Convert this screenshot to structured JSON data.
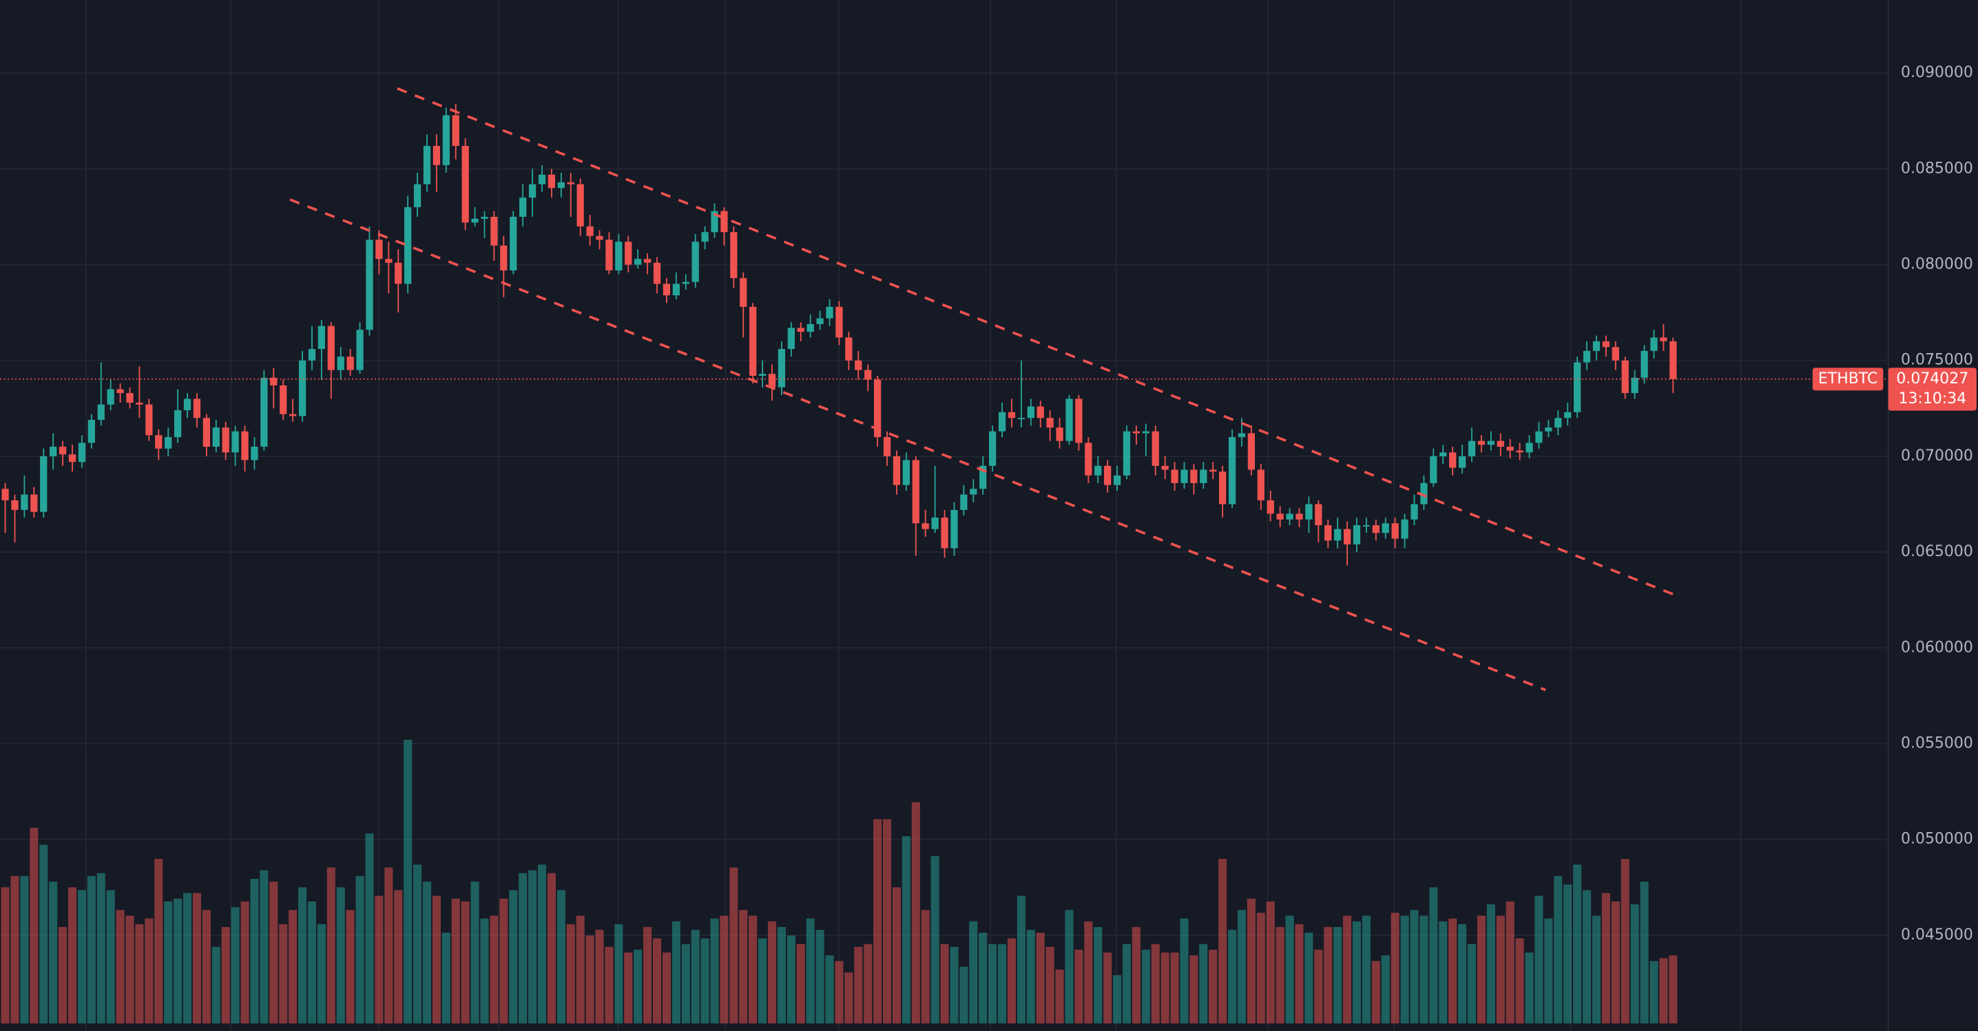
{
  "chart_data": {
    "type": "candlestick",
    "symbol": "ETHBTC",
    "last_price": 0.074027,
    "countdown": "13:10:34",
    "up_color": "#26a69a",
    "down_color": "#ef5350",
    "ylim": [
      0.04,
      0.093816
    ],
    "yticks": [
      {
        "value": 0.09,
        "label": "0.090000"
      },
      {
        "value": 0.085,
        "label": "0.085000"
      },
      {
        "value": 0.08,
        "label": "0.080000"
      },
      {
        "value": 0.075,
        "label": "0.075000"
      },
      {
        "value": 0.07,
        "label": "0.070000"
      },
      {
        "value": 0.065,
        "label": "0.065000"
      },
      {
        "value": 0.06,
        "label": "0.060000"
      },
      {
        "value": 0.055,
        "label": "0.055000"
      },
      {
        "value": 0.05,
        "label": "0.050000"
      },
      {
        "value": 0.045,
        "label": "0.045000"
      }
    ],
    "grid": true,
    "volume_lim": [
      0,
      100
    ],
    "candles": {
      "open": [
        0.0683,
        0.0677,
        0.0672,
        0.068,
        0.0671,
        0.07,
        0.0705,
        0.0701,
        0.0697,
        0.0707,
        0.0719,
        0.0727,
        0.0735,
        0.0733,
        0.0728,
        0.0727,
        0.0711,
        0.0704,
        0.071,
        0.0724,
        0.073,
        0.072,
        0.0705,
        0.0715,
        0.0702,
        0.0713,
        0.0698,
        0.0705,
        0.0741,
        0.0737,
        0.0722,
        0.0721,
        0.075,
        0.0756,
        0.0768,
        0.0745,
        0.0752,
        0.0745,
        0.0766,
        0.0813,
        0.0803,
        0.0801,
        0.079,
        0.083,
        0.0842,
        0.0862,
        0.0852,
        0.0878,
        0.0862,
        0.0822,
        0.0824,
        0.0825,
        0.081,
        0.0797,
        0.0825,
        0.0835,
        0.0842,
        0.0847,
        0.084,
        0.0843,
        0.0842,
        0.082,
        0.0815,
        0.0813,
        0.0797,
        0.0812,
        0.08,
        0.0803,
        0.0801,
        0.079,
        0.0784,
        0.079,
        0.0791,
        0.0812,
        0.0817,
        0.0828,
        0.0817,
        0.0793,
        0.0778,
        0.0742,
        0.0743,
        0.0736,
        0.0756,
        0.0767,
        0.0765,
        0.0769,
        0.0772,
        0.0778,
        0.0762,
        0.075,
        0.0745,
        0.074,
        0.071,
        0.07,
        0.0685,
        0.0698,
        0.0665,
        0.0662,
        0.0668,
        0.0652,
        0.0672,
        0.068,
        0.0683,
        0.0695,
        0.0713,
        0.0723,
        0.072,
        0.072,
        0.0726,
        0.072,
        0.0715,
        0.0708,
        0.073,
        0.0707,
        0.069,
        0.0695,
        0.0685,
        0.069,
        0.0713,
        0.0712,
        0.0713,
        0.0695,
        0.0693,
        0.0686,
        0.0693,
        0.0686,
        0.0693,
        0.0692,
        0.0675,
        0.071,
        0.0712,
        0.0693,
        0.0677,
        0.067,
        0.0667,
        0.067,
        0.0667,
        0.0675,
        0.0664,
        0.0656,
        0.0662,
        0.0654,
        0.0664,
        0.0664,
        0.066,
        0.0665,
        0.0657,
        0.0667,
        0.0675,
        0.0686,
        0.07,
        0.0702,
        0.0694,
        0.07,
        0.0708,
        0.0706,
        0.0708,
        0.0705,
        0.0703,
        0.0702,
        0.0707,
        0.0713,
        0.0715,
        0.072,
        0.0723,
        0.0749,
        0.0755,
        0.076,
        0.0757,
        0.075,
        0.0733,
        0.0741,
        0.0755,
        0.0762,
        0.076
      ],
      "high": [
        0.0686,
        0.068,
        0.069,
        0.0684,
        0.0704,
        0.0712,
        0.0708,
        0.0706,
        0.0711,
        0.0722,
        0.0749,
        0.074,
        0.0738,
        0.0736,
        0.0747,
        0.073,
        0.0714,
        0.0715,
        0.0735,
        0.0733,
        0.0733,
        0.0722,
        0.0719,
        0.0718,
        0.0716,
        0.0716,
        0.071,
        0.0745,
        0.0746,
        0.074,
        0.073,
        0.0755,
        0.0768,
        0.0771,
        0.077,
        0.0757,
        0.0756,
        0.077,
        0.082,
        0.0818,
        0.0812,
        0.0808,
        0.0836,
        0.0848,
        0.0868,
        0.0868,
        0.0882,
        0.0884,
        0.0866,
        0.083,
        0.0828,
        0.0828,
        0.0815,
        0.0828,
        0.0842,
        0.085,
        0.0852,
        0.085,
        0.0848,
        0.0848,
        0.0845,
        0.0826,
        0.0818,
        0.0817,
        0.0816,
        0.0815,
        0.0808,
        0.0806,
        0.0804,
        0.0793,
        0.0796,
        0.0795,
        0.0816,
        0.082,
        0.0832,
        0.083,
        0.082,
        0.0796,
        0.078,
        0.075,
        0.0748,
        0.076,
        0.077,
        0.077,
        0.0774,
        0.0776,
        0.0782,
        0.0781,
        0.0765,
        0.0755,
        0.0748,
        0.0742,
        0.0713,
        0.0703,
        0.0702,
        0.07,
        0.0672,
        0.0695,
        0.0672,
        0.0676,
        0.0685,
        0.0688,
        0.07,
        0.0716,
        0.0728,
        0.073,
        0.075,
        0.073,
        0.0729,
        0.0724,
        0.072,
        0.0732,
        0.0732,
        0.071,
        0.07,
        0.0698,
        0.0695,
        0.0716,
        0.0716,
        0.0717,
        0.0716,
        0.07,
        0.0697,
        0.0697,
        0.0696,
        0.0697,
        0.0697,
        0.0695,
        0.0714,
        0.072,
        0.0716,
        0.0696,
        0.0682,
        0.0674,
        0.0673,
        0.0673,
        0.0679,
        0.0677,
        0.0667,
        0.0668,
        0.0666,
        0.0668,
        0.0668,
        0.0667,
        0.0668,
        0.0668,
        0.067,
        0.068,
        0.069,
        0.0704,
        0.0706,
        0.0705,
        0.0706,
        0.0715,
        0.0711,
        0.0713,
        0.0712,
        0.0709,
        0.0707,
        0.0711,
        0.0718,
        0.0719,
        0.0724,
        0.0728,
        0.0752,
        0.076,
        0.0763,
        0.0763,
        0.076,
        0.0752,
        0.0745,
        0.0758,
        0.0766,
        0.0769,
        0.0762
      ],
      "low": [
        0.066,
        0.0655,
        0.0668,
        0.0668,
        0.0668,
        0.0693,
        0.0695,
        0.0692,
        0.0694,
        0.0704,
        0.0716,
        0.0724,
        0.0728,
        0.0725,
        0.072,
        0.0708,
        0.0698,
        0.07,
        0.0707,
        0.072,
        0.0715,
        0.07,
        0.0702,
        0.0698,
        0.0695,
        0.0692,
        0.0693,
        0.0703,
        0.0725,
        0.0719,
        0.0718,
        0.0718,
        0.0745,
        0.074,
        0.073,
        0.074,
        0.0742,
        0.0743,
        0.0763,
        0.0795,
        0.0785,
        0.0775,
        0.0785,
        0.0825,
        0.0838,
        0.0838,
        0.0848,
        0.0855,
        0.0818,
        0.082,
        0.0814,
        0.0802,
        0.0783,
        0.0795,
        0.082,
        0.0825,
        0.0838,
        0.0835,
        0.0835,
        0.0825,
        0.0815,
        0.081,
        0.0808,
        0.0795,
        0.0795,
        0.0796,
        0.0798,
        0.0795,
        0.0785,
        0.078,
        0.0782,
        0.0787,
        0.0788,
        0.0808,
        0.0814,
        0.081,
        0.0788,
        0.0762,
        0.0738,
        0.0736,
        0.0729,
        0.0732,
        0.0752,
        0.076,
        0.0762,
        0.0766,
        0.0768,
        0.0758,
        0.0745,
        0.074,
        0.0734,
        0.0705,
        0.0695,
        0.068,
        0.0682,
        0.0648,
        0.0658,
        0.066,
        0.0647,
        0.0648,
        0.0669,
        0.0676,
        0.068,
        0.0692,
        0.071,
        0.0715,
        0.0715,
        0.0716,
        0.0715,
        0.0708,
        0.0704,
        0.0706,
        0.0703,
        0.0686,
        0.0686,
        0.0681,
        0.0682,
        0.0688,
        0.0706,
        0.07,
        0.069,
        0.0688,
        0.0682,
        0.0683,
        0.068,
        0.0683,
        0.0688,
        0.0668,
        0.0673,
        0.0705,
        0.069,
        0.0672,
        0.0666,
        0.0663,
        0.0664,
        0.0663,
        0.066,
        0.0655,
        0.0652,
        0.0652,
        0.0643,
        0.065,
        0.066,
        0.0656,
        0.0657,
        0.0652,
        0.0652,
        0.0664,
        0.0672,
        0.0684,
        0.0696,
        0.069,
        0.0691,
        0.0697,
        0.0702,
        0.0703,
        0.07,
        0.0699,
        0.0698,
        0.0699,
        0.0704,
        0.071,
        0.0711,
        0.0716,
        0.072,
        0.0745,
        0.075,
        0.0752,
        0.0745,
        0.073,
        0.073,
        0.0738,
        0.0751,
        0.0755,
        0.0733
      ],
      "close": [
        0.0677,
        0.0672,
        0.068,
        0.0671,
        0.07,
        0.0705,
        0.0701,
        0.0697,
        0.0707,
        0.0719,
        0.0727,
        0.0735,
        0.0733,
        0.0728,
        0.0727,
        0.0711,
        0.0704,
        0.071,
        0.0724,
        0.073,
        0.072,
        0.0705,
        0.0715,
        0.0702,
        0.0713,
        0.0698,
        0.0705,
        0.0741,
        0.0737,
        0.0722,
        0.0721,
        0.075,
        0.0756,
        0.0768,
        0.0745,
        0.0752,
        0.0745,
        0.0766,
        0.0813,
        0.0803,
        0.0801,
        0.079,
        0.083,
        0.0842,
        0.0862,
        0.0852,
        0.0878,
        0.0862,
        0.0822,
        0.0824,
        0.0825,
        0.081,
        0.0797,
        0.0825,
        0.0835,
        0.0842,
        0.0847,
        0.084,
        0.0843,
        0.0842,
        0.082,
        0.0815,
        0.0813,
        0.0797,
        0.0812,
        0.08,
        0.0803,
        0.0801,
        0.079,
        0.0784,
        0.079,
        0.0791,
        0.0812,
        0.0817,
        0.0828,
        0.0817,
        0.0793,
        0.0778,
        0.0742,
        0.0743,
        0.0736,
        0.0756,
        0.0767,
        0.0765,
        0.0769,
        0.0772,
        0.0778,
        0.0762,
        0.075,
        0.0745,
        0.074,
        0.071,
        0.07,
        0.0685,
        0.0698,
        0.0665,
        0.0662,
        0.0668,
        0.0652,
        0.0672,
        0.068,
        0.0683,
        0.0695,
        0.0713,
        0.0723,
        0.072,
        0.072,
        0.0726,
        0.072,
        0.0715,
        0.0708,
        0.073,
        0.0707,
        0.069,
        0.0695,
        0.0685,
        0.069,
        0.0713,
        0.0712,
        0.0713,
        0.0695,
        0.0693,
        0.0686,
        0.0693,
        0.0686,
        0.0693,
        0.0692,
        0.0675,
        0.071,
        0.0712,
        0.0693,
        0.0677,
        0.067,
        0.0667,
        0.067,
        0.0667,
        0.0675,
        0.0664,
        0.0656,
        0.0662,
        0.0654,
        0.0664,
        0.0664,
        0.066,
        0.0665,
        0.0657,
        0.0667,
        0.0675,
        0.0686,
        0.07,
        0.0702,
        0.0694,
        0.07,
        0.0708,
        0.0706,
        0.0708,
        0.0705,
        0.0703,
        0.0702,
        0.0707,
        0.0713,
        0.0715,
        0.072,
        0.0723,
        0.0749,
        0.0755,
        0.076,
        0.0757,
        0.075,
        0.0733,
        0.0741,
        0.0755,
        0.0762,
        0.076,
        0.074027
      ],
      "volume": [
        48,
        52,
        52,
        69,
        63,
        50,
        34,
        48,
        47,
        52,
        53,
        47,
        40,
        38,
        35,
        37,
        58,
        43,
        44,
        46,
        46,
        40,
        27,
        34,
        41,
        43,
        51,
        54,
        50,
        35,
        40,
        48,
        43,
        35,
        55,
        48,
        40,
        52,
        67,
        45,
        55,
        47,
        100,
        56,
        50,
        45,
        32,
        44,
        43,
        50,
        37,
        38,
        44,
        47,
        53,
        54,
        56,
        53,
        47,
        35,
        38,
        31,
        33,
        27,
        35,
        25,
        26,
        34,
        30,
        25,
        36,
        28,
        33,
        30,
        37,
        38,
        55,
        40,
        38,
        30,
        36,
        34,
        31,
        28,
        37,
        33,
        24,
        22,
        18,
        27,
        28,
        72,
        72,
        48,
        66,
        78,
        40,
        59,
        28,
        27,
        20,
        36,
        32,
        28,
        28,
        30,
        45,
        33,
        32,
        27,
        19,
        40,
        26,
        36,
        34,
        25,
        17,
        28,
        34,
        26,
        28,
        25,
        25,
        37,
        24,
        28,
        26,
        58,
        33,
        40,
        44,
        39,
        43,
        34,
        38,
        35,
        32,
        26,
        34,
        34,
        38,
        36,
        38,
        22,
        24,
        39,
        38,
        40,
        38,
        48,
        36,
        37,
        35,
        28,
        38,
        42,
        38,
        43,
        30,
        25,
        45,
        37,
        52,
        49,
        56,
        47,
        38,
        46,
        43,
        58,
        42,
        50,
        22,
        23,
        24
      ]
    },
    "trendlines": [
      {
        "x": [
          40.9,
          174.5
        ],
        "y": [
          0.0892,
          0.0627
        ],
        "color": "#ef5350"
      },
      {
        "x": [
          29.7,
          160.7
        ],
        "y": [
          0.0834,
          0.0578
        ],
        "color": "#ef5350"
      }
    ]
  }
}
